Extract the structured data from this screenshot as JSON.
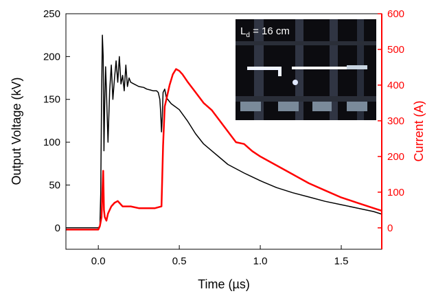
{
  "chart_data": {
    "type": "line",
    "xlabel": "Time (µs)",
    "ylabel": "Output Voltage (kV)",
    "y2label": "Current (A)",
    "xlim": [
      -0.2,
      1.75
    ],
    "ylim": [
      -25,
      250
    ],
    "y2lim": [
      -60,
      600
    ],
    "x_ticks": [
      "0.0",
      "0.5",
      "1.0",
      "1.5"
    ],
    "x_tick_values": [
      0.0,
      0.5,
      1.0,
      1.5
    ],
    "y_ticks": [
      "0",
      "50",
      "100",
      "150",
      "200",
      "250"
    ],
    "y_tick_values": [
      0,
      50,
      100,
      150,
      200,
      250
    ],
    "y2_ticks": [
      "0",
      "100",
      "200",
      "300",
      "400",
      "500",
      "600"
    ],
    "y2_tick_values": [
      0,
      100,
      200,
      300,
      400,
      500,
      600
    ],
    "colors": {
      "voltage": "#000000",
      "current": "#ff0000"
    },
    "inset": {
      "label_main": "L",
      "label_sub": "d",
      "label_rest": " = 16 cm"
    },
    "series": [
      {
        "axis": "left",
        "color": "#000000",
        "x": [
          -0.2,
          0.0,
          0.01,
          0.015,
          0.02,
          0.025,
          0.03,
          0.035,
          0.04,
          0.045,
          0.05,
          0.06,
          0.07,
          0.08,
          0.09,
          0.1,
          0.11,
          0.12,
          0.13,
          0.14,
          0.15,
          0.16,
          0.17,
          0.18,
          0.19,
          0.2,
          0.22,
          0.25,
          0.28,
          0.3,
          0.32,
          0.34,
          0.36,
          0.37,
          0.38,
          0.385,
          0.39,
          0.395,
          0.4,
          0.41,
          0.42,
          0.45,
          0.5,
          0.55,
          0.6,
          0.65,
          0.7,
          0.75,
          0.8,
          0.9,
          1.0,
          1.1,
          1.2,
          1.3,
          1.4,
          1.5,
          1.6,
          1.7,
          1.75
        ],
        "values": [
          0,
          0,
          2,
          40,
          150,
          225,
          200,
          90,
          150,
          188,
          160,
          100,
          160,
          190,
          150,
          175,
          195,
          170,
          200,
          168,
          178,
          160,
          190,
          165,
          175,
          170,
          168,
          165,
          164,
          162,
          161,
          160,
          160,
          158,
          150,
          135,
          112,
          130,
          158,
          162,
          152,
          145,
          138,
          125,
          110,
          98,
          90,
          82,
          74,
          64,
          55,
          47,
          41,
          36,
          31,
          27,
          23,
          19,
          16
        ]
      },
      {
        "axis": "right",
        "color": "#ff0000",
        "x": [
          -0.2,
          -0.1,
          0.0,
          0.01,
          0.02,
          0.025,
          0.03,
          0.035,
          0.04,
          0.05,
          0.06,
          0.08,
          0.1,
          0.12,
          0.15,
          0.2,
          0.25,
          0.3,
          0.35,
          0.39,
          0.4,
          0.41,
          0.42,
          0.44,
          0.46,
          0.48,
          0.5,
          0.52,
          0.55,
          0.6,
          0.65,
          0.7,
          0.75,
          0.8,
          0.85,
          0.9,
          0.95,
          1.0,
          1.1,
          1.2,
          1.3,
          1.4,
          1.5,
          1.6,
          1.7,
          1.75
        ],
        "values": [
          -5,
          -5,
          -5,
          5,
          30,
          100,
          160,
          50,
          30,
          20,
          40,
          60,
          70,
          75,
          60,
          60,
          55,
          55,
          55,
          60,
          230,
          340,
          360,
          400,
          430,
          445,
          440,
          430,
          410,
          380,
          350,
          330,
          300,
          270,
          240,
          235,
          215,
          200,
          175,
          150,
          125,
          105,
          85,
          70,
          55,
          48
        ]
      }
    ]
  }
}
